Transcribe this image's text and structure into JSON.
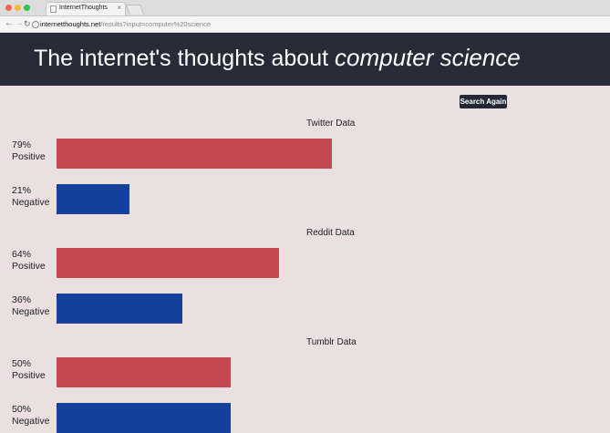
{
  "browser": {
    "tab_title": "InternetThoughts",
    "url_host": "internetthoughts.net",
    "url_path": "/results?input=computer%20science"
  },
  "header": {
    "prefix": "The internet's thoughts about ",
    "topic": "computer science"
  },
  "search_again": "Search Again",
  "colors": {
    "positive": "#c5484e",
    "negative": "#15419a",
    "header": "#272b37",
    "background": "#ebdfe1"
  },
  "sections": [
    {
      "title": "Twitter Data",
      "positive": {
        "value": 79,
        "percent": "79%",
        "label": "Positive"
      },
      "negative": {
        "value": 21,
        "percent": "21%",
        "label": "Negative"
      }
    },
    {
      "title": "Reddit Data",
      "positive": {
        "value": 64,
        "percent": "64%",
        "label": "Positive"
      },
      "negative": {
        "value": 36,
        "percent": "36%",
        "label": "Negative"
      }
    },
    {
      "title": "Tumblr Data",
      "positive": {
        "value": 50,
        "percent": "50%",
        "label": "Positive"
      },
      "negative": {
        "value": 50,
        "percent": "50%",
        "label": "Negative"
      }
    }
  ]
}
